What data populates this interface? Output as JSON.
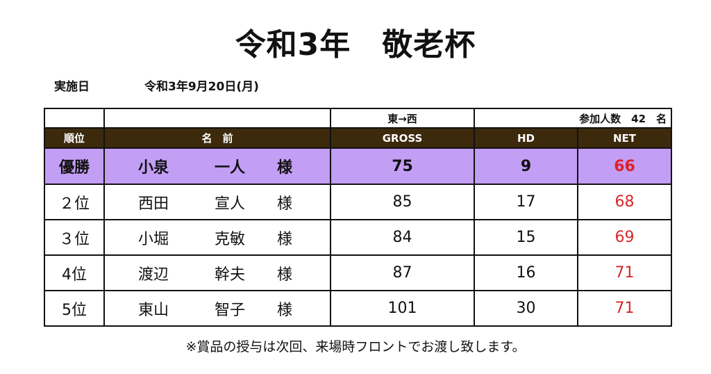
{
  "title": "令和3年　敬老杯",
  "date": {
    "label": "実施日",
    "value": "令和3年9月20日(月)"
  },
  "table": {
    "info": {
      "course": "東→西",
      "participants": "参加人数　42　名"
    },
    "headers": {
      "rank": "順位",
      "name": "名　前",
      "gross": "GROSS",
      "hd": "HD",
      "net": "NET"
    },
    "rows": [
      {
        "rank": "優勝",
        "surname": "小泉",
        "given": "一人",
        "honor": "様",
        "gross": "75",
        "hd": "9",
        "net": "66"
      },
      {
        "rank": "２位",
        "surname": "西田",
        "given": "宣人",
        "honor": "様",
        "gross": "85",
        "hd": "17",
        "net": "68"
      },
      {
        "rank": "３位",
        "surname": "小堀",
        "given": "克敏",
        "honor": "様",
        "gross": "84",
        "hd": "15",
        "net": "69"
      },
      {
        "rank": "4位",
        "surname": "渡辺",
        "given": "幹夫",
        "honor": "様",
        "gross": "87",
        "hd": "16",
        "net": "71"
      },
      {
        "rank": "5位",
        "surname": "東山",
        "given": "智子",
        "honor": "様",
        "gross": "101",
        "hd": "30",
        "net": "71"
      }
    ]
  },
  "footnote": "※賞品の授与は次回、来場時フロントでお渡し致します。",
  "colors": {
    "header_bg": "#3d2a0d",
    "winner_bg": "#c39ef5",
    "net_text": "#d6282b"
  }
}
